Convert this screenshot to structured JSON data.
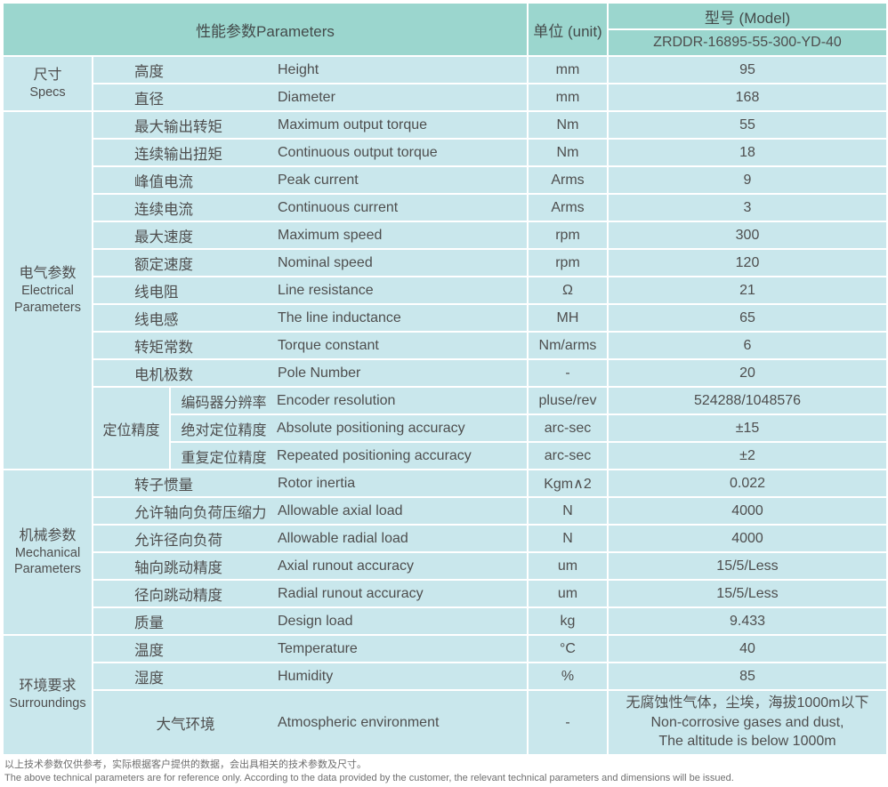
{
  "header": {
    "parameters_label": "性能参数Parameters",
    "unit_label": "单位 (unit)",
    "model_label": "型号 (Model)",
    "model_value": "ZRDDR-16895-55-300-YD-40"
  },
  "sections": [
    {
      "category_cn": "尺寸",
      "category_en": "Specs",
      "rows": [
        {
          "cn": "高度",
          "en": "Height",
          "unit": "mm",
          "value": "95"
        },
        {
          "cn": "直径",
          "en": "Diameter",
          "unit": "mm",
          "value": "168"
        }
      ]
    },
    {
      "category_cn": "电气参数",
      "category_en": "Electrical Parameters",
      "rows": [
        {
          "cn": "最大输出转矩",
          "en": "Maximum output torque",
          "unit": "Nm",
          "value": "55"
        },
        {
          "cn": "连续输出扭矩",
          "en": "Continuous output torque",
          "unit": "Nm",
          "value": "18"
        },
        {
          "cn": "峰值电流",
          "en": "Peak current",
          "unit": "Arms",
          "value": "9"
        },
        {
          "cn": "连续电流",
          "en": "Continuous current",
          "unit": "Arms",
          "value": "3"
        },
        {
          "cn": "最大速度",
          "en": "Maximum speed",
          "unit": "rpm",
          "value": "300"
        },
        {
          "cn": "额定速度",
          "en": "Nominal speed",
          "unit": "rpm",
          "value": "120"
        },
        {
          "cn": "线电阻",
          "en": "Line resistance",
          "unit": "Ω",
          "value": "21"
        },
        {
          "cn": "线电感",
          "en": "The line inductance",
          "unit": "MH",
          "value": "65"
        },
        {
          "cn": "转矩常数",
          "en": "Torque constant",
          "unit": "Nm/arms",
          "value": "6"
        },
        {
          "cn": "电机极数",
          "en": "Pole Number",
          "unit": "-",
          "value": "20"
        },
        {
          "group": "定位精度",
          "rows": [
            {
              "cn": "编码器分辨率",
              "en": "Encoder resolution",
              "unit": "pluse/rev",
              "value": "524288/1048576"
            },
            {
              "cn": "绝对定位精度",
              "en": "Absolute positioning accuracy",
              "unit": "arc-sec",
              "value": "±15"
            },
            {
              "cn": "重复定位精度",
              "en": "Repeated positioning accuracy",
              "unit": "arc-sec",
              "value": "±2"
            }
          ]
        }
      ]
    },
    {
      "category_cn": "机械参数",
      "category_en": "Mechanical Parameters",
      "rows": [
        {
          "cn": "转子惯量",
          "en": "Rotor inertia",
          "unit": "Kgm∧2",
          "value": "0.022"
        },
        {
          "cn": "允许轴向负荷压缩力",
          "en": "Allowable axial load",
          "unit": "N",
          "value": "4000"
        },
        {
          "cn": "允许径向负荷",
          "en": "Allowable radial load",
          "unit": "N",
          "value": "4000"
        },
        {
          "cn": "轴向跳动精度",
          "en": "Axial runout accuracy",
          "unit": "um",
          "value": "15/5/Less"
        },
        {
          "cn": "径向跳动精度",
          "en": "Radial runout accuracy",
          "unit": "um",
          "value": "15/5/Less"
        },
        {
          "cn": "质量",
          "en": "Design load",
          "unit": "kg",
          "value": "9.433"
        }
      ]
    },
    {
      "category_cn": "环境要求",
      "category_en": "Surroundings",
      "rows": [
        {
          "cn": "温度",
          "en": "Temperature",
          "unit": "°C",
          "value": "40"
        },
        {
          "cn": "湿度",
          "en": "Humidity",
          "unit": "%",
          "value": "85"
        },
        {
          "cn": "大气环境",
          "en": "Atmospheric environment",
          "unit": "-",
          "value": "无腐蚀性气体，尘埃，海拔1000m以下\nNon-corrosive gases and dust,\nThe altitude is below 1000m",
          "tall": true,
          "cn_center": true
        }
      ]
    }
  ],
  "footer": {
    "note_cn": "以上技术参数仅供参考，实际根据客户提供的数据，会出具相关的技术参数及尺寸。",
    "note_en": "The above technical parameters are for reference only. According to the data provided by the customer, the relevant technical parameters and dimensions will be issued."
  },
  "colors": {
    "header_teal": "#9bd6ce",
    "cell_blue": "#c9e7ec",
    "text": "#4e4e4e",
    "background": "#ffffff"
  }
}
